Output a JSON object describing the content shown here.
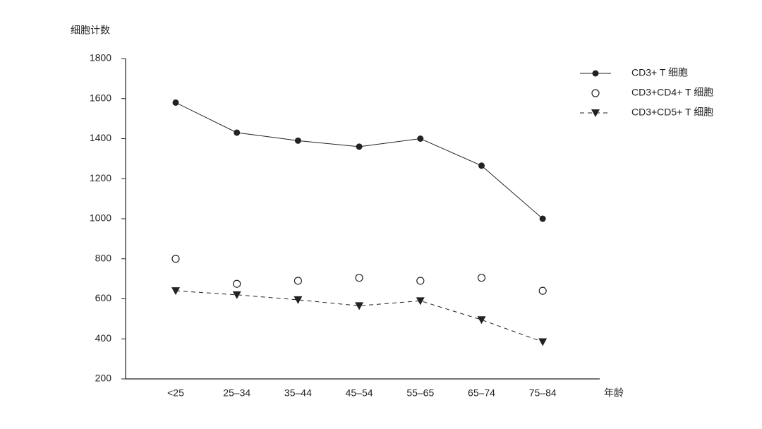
{
  "chart_data": {
    "type": "line",
    "y_label": "细胞计数",
    "x_label": "年龄",
    "categories": [
      "<25",
      "25–34",
      "35–44",
      "45–54",
      "55–65",
      "65–74",
      "75–84"
    ],
    "series": [
      {
        "name": "CD3+ T 细胞",
        "color": "#222222",
        "line_style": "solid",
        "marker": "filled-circle",
        "values": [
          1580,
          1430,
          1390,
          1360,
          1400,
          1265,
          1000
        ]
      },
      {
        "name": "CD3+CD4+ T 细胞",
        "color": "#222222",
        "line_style": "none",
        "marker": "open-circle",
        "values": [
          800,
          675,
          690,
          705,
          690,
          705,
          640
        ]
      },
      {
        "name": "CD3+CD5+ T 细胞",
        "color": "#222222",
        "line_style": "dashed",
        "marker": "triangle-down",
        "values": [
          640,
          620,
          595,
          565,
          590,
          495,
          385
        ]
      }
    ],
    "ylim": [
      200,
      1800
    ],
    "yticks": [
      200,
      400,
      600,
      800,
      1000,
      1200,
      1400,
      1600,
      1800
    ],
    "grid": false,
    "legend": "top-right"
  }
}
